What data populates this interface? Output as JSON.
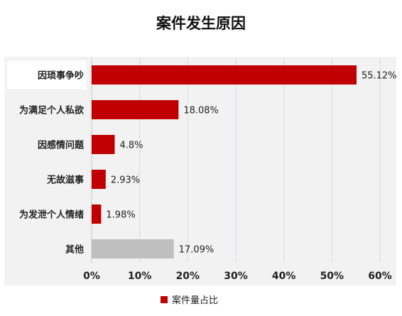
{
  "chart_data": {
    "type": "bar",
    "orientation": "horizontal",
    "title": "案件发生原因",
    "categories": [
      "因琐事争吵",
      "为满足个人私欲",
      "因感情问题",
      "无故滋事",
      "为发泄个人情绪",
      "其他"
    ],
    "series": [
      {
        "name": "案件量占比",
        "values": [
          55.12,
          18.08,
          4.8,
          2.93,
          1.98,
          17.09
        ],
        "value_labels": [
          "55.12%",
          "18.08%",
          "4.8%",
          "2.93%",
          "1.98%",
          "17.09%"
        ]
      }
    ],
    "xlim": [
      0,
      60
    ],
    "x_ticks": [
      0,
      10,
      20,
      30,
      40,
      50,
      60
    ],
    "x_tick_labels": [
      "0%",
      "10%",
      "20%",
      "30%",
      "40%",
      "50%",
      "60%"
    ],
    "grid": true,
    "legend_position": "bottom",
    "colors": {
      "primary": "#c00000",
      "other": "#bfbfbf",
      "grid": "#d6dce5",
      "axis": "#c8c8c8",
      "highlight_box": "#ffffff"
    },
    "highlighted_category_index": 0,
    "gray_category_index": 5
  }
}
